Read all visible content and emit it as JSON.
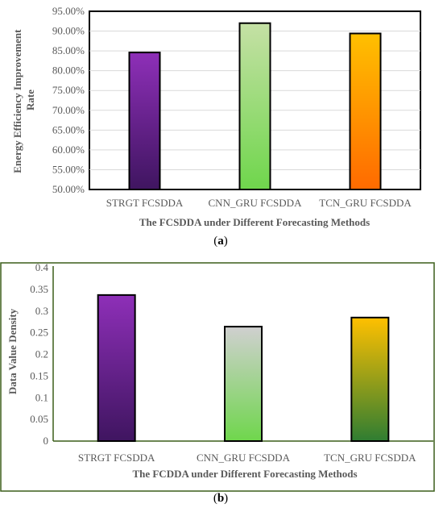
{
  "chart_data": [
    {
      "type": "bar",
      "panel_label_open": "(",
      "panel_label": "a",
      "panel_label_close": ")",
      "categories": [
        "STRGT FCSDDA",
        "CNN_GRU FCSDDA",
        "TCN_GRU FCSDDA"
      ],
      "values": [
        84.6,
        92.0,
        89.4
      ],
      "ylim": [
        50,
        95
      ],
      "yticks": [
        "50.00%",
        "55.00%",
        "60.00%",
        "65.00%",
        "70.00%",
        "75.00%",
        "80.00%",
        "85.00%",
        "90.00%",
        "95.00%"
      ],
      "ylabel_line1": "Energy Efficiency Improvement",
      "ylabel_line2": "Rate",
      "xlabel": "The FCSDDA under Different Forecasting Methods",
      "grid": true,
      "frame_color": "#000000",
      "bar_gradients": [
        [
          "#8e2fb8",
          "#3f1560"
        ],
        [
          "#c5e0a5",
          "#6fd64c"
        ],
        [
          "#ffc000",
          "#ff6a00"
        ]
      ]
    },
    {
      "type": "bar",
      "panel_label_open": "(",
      "panel_label": "b",
      "panel_label_close": ")",
      "categories": [
        "STRGT FCSDDA",
        "CNN_GRU FCSDDA",
        "TCN_GRU FCSDDA"
      ],
      "values": [
        0.337,
        0.264,
        0.285
      ],
      "ylim": [
        0,
        0.4
      ],
      "yticks": [
        "0",
        "0.05",
        "0.1",
        "0.15",
        "0.2",
        "0.25",
        "0.3",
        "0.35",
        "0.4"
      ],
      "ylabel": "Data Value Density",
      "xlabel": "The FCDDA under Different Forecasting Methods",
      "grid": false,
      "frame_color": "#3b5e1a",
      "bar_gradients": [
        [
          "#8e2fb8",
          "#3f1560"
        ],
        [
          "#d0d0d0",
          "#6fd64c"
        ],
        [
          "#ffc000",
          "#2f7d32"
        ]
      ]
    }
  ]
}
